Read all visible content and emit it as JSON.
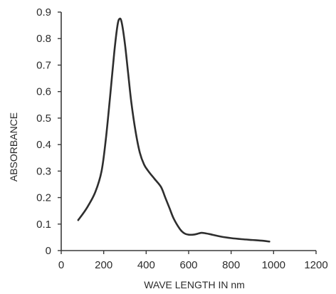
{
  "chart_data": {
    "type": "line",
    "xlabel": "WAVE LENGTH IN nm",
    "ylabel": "ABSORBANCE",
    "xlim": [
      0,
      1200
    ],
    "ylim": [
      0,
      0.9
    ],
    "x_ticks": [
      "0",
      "200",
      "400",
      "600",
      "800",
      "1000",
      "1200"
    ],
    "y_ticks": [
      "0",
      "0.1",
      "0.2",
      "0.3",
      "0.4",
      "0.5",
      "0.6",
      "0.7",
      "0.8",
      "0.9"
    ],
    "grid": false,
    "legend": "none",
    "series": [
      {
        "color": "#2e2e2e",
        "x": [
          80,
          120,
          160,
          190,
          210,
          230,
          250,
          265,
          275,
          285,
          300,
          315,
          330,
          350,
          370,
          390,
          410,
          440,
          470,
          490,
          510,
          530,
          560,
          580,
          600,
          620,
          640,
          660,
          680,
          700,
          750,
          800,
          850,
          900,
          950,
          980
        ],
        "y": [
          0.115,
          0.16,
          0.22,
          0.3,
          0.42,
          0.58,
          0.75,
          0.85,
          0.875,
          0.86,
          0.78,
          0.67,
          0.56,
          0.45,
          0.37,
          0.325,
          0.3,
          0.27,
          0.24,
          0.2,
          0.16,
          0.12,
          0.08,
          0.065,
          0.06,
          0.06,
          0.063,
          0.067,
          0.065,
          0.062,
          0.053,
          0.047,
          0.043,
          0.04,
          0.037,
          0.034
        ]
      }
    ]
  }
}
